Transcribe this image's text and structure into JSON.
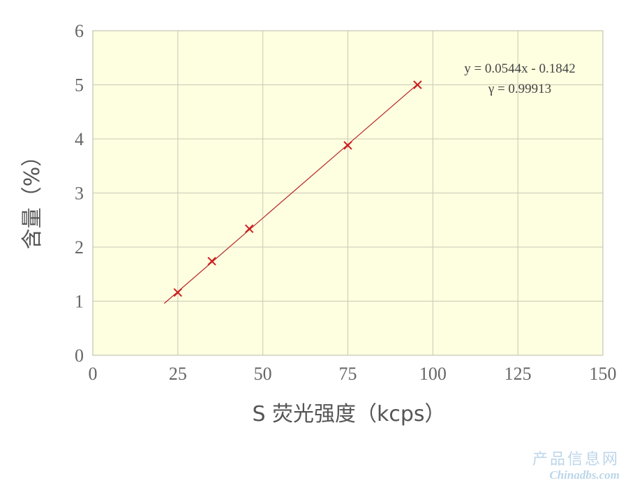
{
  "chart_data": {
    "type": "scatter",
    "xlabel": "S 荧光强度（kcps）",
    "ylabel": "含量（%）",
    "xlim": [
      0,
      150
    ],
    "ylim": [
      0,
      6
    ],
    "x_ticks": [
      "0",
      "25",
      "50",
      "75",
      "100",
      "125",
      "150"
    ],
    "y_ticks": [
      "0",
      "1",
      "2",
      "3",
      "4",
      "5",
      "6"
    ],
    "grid": true,
    "series": [
      {
        "points": [
          {
            "x": 25,
            "y": 1.16
          },
          {
            "x": 35,
            "y": 1.74
          },
          {
            "x": 46,
            "y": 2.34
          },
          {
            "x": 75,
            "y": 3.88
          },
          {
            "x": 95.5,
            "y": 5.0
          }
        ]
      }
    ],
    "fit_line": {
      "slope": 0.0544,
      "intercept": -0.1842,
      "x_range": [
        21,
        95.5
      ]
    },
    "annotations": [
      "y = 0.0544x - 0.1842",
      "γ = 0.99913"
    ],
    "colors": {
      "plot_bg": "#fefee0",
      "grid": "#c9c9b8",
      "marker": "#cc1f1f",
      "line": "#b52424"
    }
  },
  "watermark": {
    "line1": "产品信息网",
    "line2": "Chinadbs.com"
  }
}
